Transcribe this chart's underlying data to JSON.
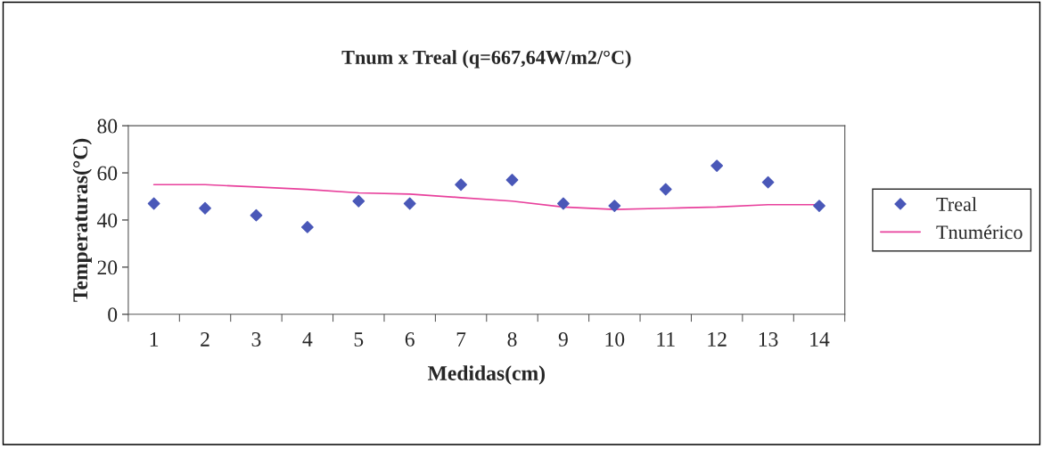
{
  "chart_data": {
    "type": "scatter",
    "title": "Tnum x Treal (q=667,64W/m2/°C)",
    "xlabel": "Medidas(cm)",
    "ylabel": "Temperaturas(°C)",
    "categories": [
      "1",
      "2",
      "3",
      "4",
      "5",
      "6",
      "7",
      "8",
      "9",
      "10",
      "11",
      "12",
      "13",
      "14"
    ],
    "series": [
      {
        "name": "Treal",
        "color": "#4a58b8",
        "marker": "diamond",
        "values": [
          47,
          45,
          42,
          37,
          48,
          47,
          55,
          57,
          47,
          46,
          53,
          63,
          56,
          46
        ]
      },
      {
        "name": "Tnumérico",
        "type": "line",
        "color": "#e8409c",
        "values": [
          55,
          55,
          54,
          53,
          51.5,
          51,
          49.5,
          48,
          45.5,
          44.5,
          45,
          45.5,
          46.5,
          46.5
        ]
      }
    ],
    "ylim": [
      0,
      80
    ],
    "yticks": [
      0,
      20,
      40,
      60,
      80
    ],
    "grid": false,
    "legend": "right"
  }
}
